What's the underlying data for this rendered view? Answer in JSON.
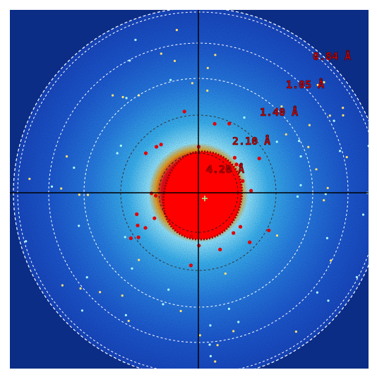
{
  "rings": [
    {
      "label": "0.84 Å"
    },
    {
      "label": "1.05 Å"
    },
    {
      "label": "1.40 Å"
    },
    {
      "label": "2.10 Å"
    },
    {
      "label": "4.20 Å"
    }
  ]
}
